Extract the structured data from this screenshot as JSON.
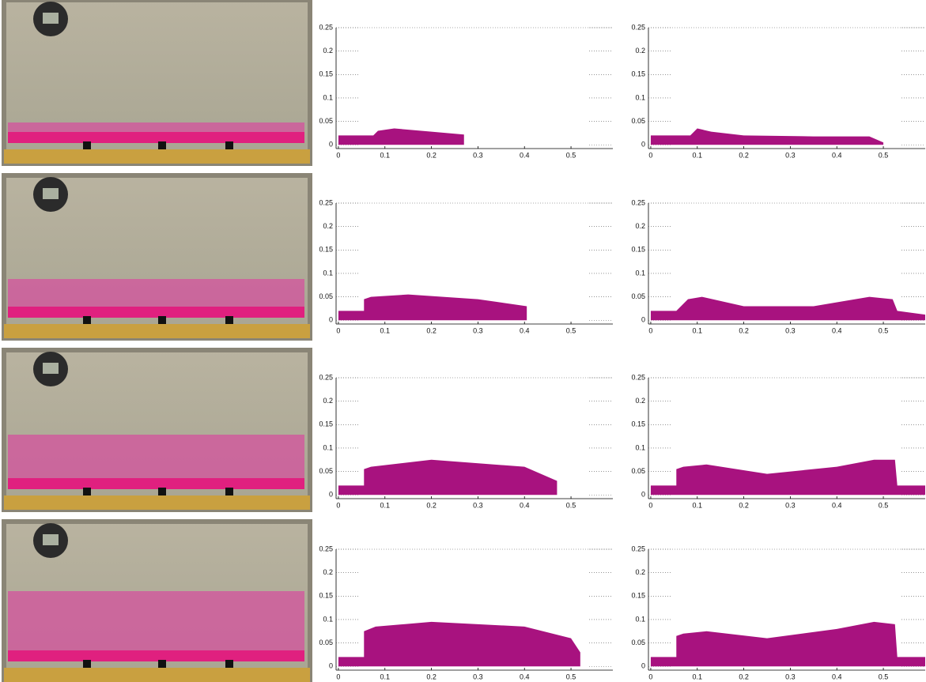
{
  "chart_data": [
    {
      "type": "area",
      "color": "#a8127f",
      "xlim": [
        -0.005,
        0.59
      ],
      "ylim": [
        -0.008,
        0.25
      ],
      "xticks": [
        0,
        0.1,
        0.2,
        0.3,
        0.4,
        0.5
      ],
      "yticks": [
        0,
        0.05,
        0.1,
        0.15,
        0.2,
        0.25
      ],
      "x": [
        0,
        0.075,
        0.085,
        0.12,
        0.2,
        0.27
      ],
      "values": [
        0.02,
        0.02,
        0.03,
        0.035,
        0.028,
        0.022
      ]
    },
    {
      "type": "area",
      "color": "#a8127f",
      "xlim": [
        -0.005,
        0.59
      ],
      "ylim": [
        -0.008,
        0.25
      ],
      "xticks": [
        0,
        0.1,
        0.2,
        0.3,
        0.4,
        0.5
      ],
      "yticks": [
        0,
        0.05,
        0.1,
        0.15,
        0.2,
        0.25
      ],
      "x": [
        0,
        0.085,
        0.1,
        0.13,
        0.2,
        0.35,
        0.47,
        0.5
      ],
      "values": [
        0.02,
        0.02,
        0.035,
        0.028,
        0.02,
        0.018,
        0.018,
        0.005
      ]
    },
    {
      "type": "area",
      "color": "#a8127f",
      "xlim": [
        -0.005,
        0.59
      ],
      "ylim": [
        -0.008,
        0.25
      ],
      "xticks": [
        0,
        0.1,
        0.2,
        0.3,
        0.4,
        0.5
      ],
      "yticks": [
        0,
        0.05,
        0.1,
        0.15,
        0.2,
        0.25
      ],
      "x": [
        0,
        0.055,
        0.055,
        0.07,
        0.15,
        0.3,
        0.405
      ],
      "values": [
        0.02,
        0.02,
        0.045,
        0.05,
        0.055,
        0.045,
        0.03
      ]
    },
    {
      "type": "area",
      "color": "#a8127f",
      "xlim": [
        -0.005,
        0.59
      ],
      "ylim": [
        -0.008,
        0.25
      ],
      "xticks": [
        0,
        0.1,
        0.2,
        0.3,
        0.4,
        0.5
      ],
      "yticks": [
        0,
        0.05,
        0.1,
        0.15,
        0.2,
        0.25
      ],
      "x": [
        0,
        0.055,
        0.08,
        0.11,
        0.2,
        0.35,
        0.47,
        0.52,
        0.53,
        0.59
      ],
      "values": [
        0.02,
        0.02,
        0.045,
        0.05,
        0.03,
        0.03,
        0.05,
        0.045,
        0.02,
        0.012
      ]
    },
    {
      "type": "area",
      "color": "#a8127f",
      "xlim": [
        -0.005,
        0.59
      ],
      "ylim": [
        -0.008,
        0.25
      ],
      "xticks": [
        0,
        0.1,
        0.2,
        0.3,
        0.4,
        0.5
      ],
      "yticks": [
        0,
        0.05,
        0.1,
        0.15,
        0.2,
        0.25
      ],
      "x": [
        0,
        0.055,
        0.055,
        0.07,
        0.2,
        0.4,
        0.47
      ],
      "values": [
        0.02,
        0.02,
        0.055,
        0.06,
        0.075,
        0.06,
        0.03
      ]
    },
    {
      "type": "area",
      "color": "#a8127f",
      "xlim": [
        -0.005,
        0.59
      ],
      "ylim": [
        -0.008,
        0.25
      ],
      "xticks": [
        0,
        0.1,
        0.2,
        0.3,
        0.4,
        0.5
      ],
      "yticks": [
        0,
        0.05,
        0.1,
        0.15,
        0.2,
        0.25
      ],
      "x": [
        0,
        0.055,
        0.055,
        0.07,
        0.12,
        0.25,
        0.4,
        0.48,
        0.525,
        0.53,
        0.59
      ],
      "values": [
        0.02,
        0.02,
        0.055,
        0.06,
        0.065,
        0.045,
        0.06,
        0.075,
        0.075,
        0.02,
        0.02
      ]
    },
    {
      "type": "area",
      "color": "#a8127f",
      "xlim": [
        -0.005,
        0.59
      ],
      "ylim": [
        -0.008,
        0.25
      ],
      "xticks": [
        0,
        0.1,
        0.2,
        0.3,
        0.4,
        0.5
      ],
      "yticks": [
        0,
        0.05,
        0.1,
        0.15,
        0.2,
        0.25
      ],
      "x": [
        0,
        0.055,
        0.055,
        0.08,
        0.2,
        0.4,
        0.5,
        0.52
      ],
      "values": [
        0.02,
        0.02,
        0.075,
        0.085,
        0.095,
        0.085,
        0.06,
        0.03
      ]
    },
    {
      "type": "area",
      "color": "#a8127f",
      "xlim": [
        -0.005,
        0.59
      ],
      "ylim": [
        -0.008,
        0.25
      ],
      "xticks": [
        0,
        0.1,
        0.2,
        0.3,
        0.4,
        0.5
      ],
      "yticks": [
        0,
        0.05,
        0.1,
        0.15,
        0.2,
        0.25
      ],
      "x": [
        0,
        0.055,
        0.055,
        0.07,
        0.12,
        0.25,
        0.4,
        0.48,
        0.525,
        0.53,
        0.59
      ],
      "values": [
        0.02,
        0.02,
        0.065,
        0.07,
        0.075,
        0.06,
        0.08,
        0.095,
        0.09,
        0.02,
        0.02
      ]
    }
  ]
}
